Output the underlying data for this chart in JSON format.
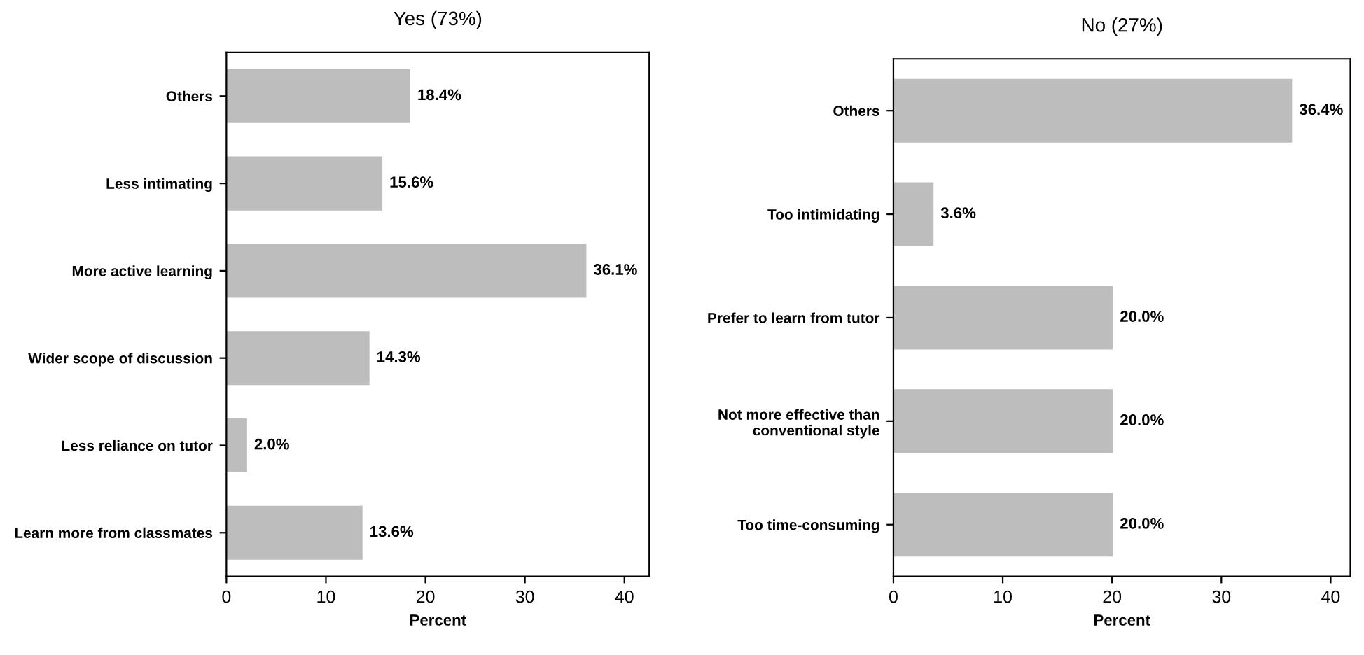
{
  "chart_data": [
    {
      "type": "bar",
      "orientation": "horizontal",
      "title": "Yes (73%)",
      "xlabel": "Percent",
      "categories": [
        "Others",
        "Less intimating",
        "More active learning",
        "Wider scope of discussion",
        "Less reliance on tutor",
        "Learn more from classmates"
      ],
      "values": [
        18.4,
        15.6,
        36.1,
        14.3,
        2.0,
        13.6
      ],
      "value_labels": [
        "18.4%",
        "15.6%",
        "36.1%",
        "14.3%",
        "2.0%",
        "13.6%"
      ],
      "color": "#bdbdbd",
      "xlim": [
        0,
        42.5
      ],
      "xticks": [
        0,
        10,
        20,
        30,
        40
      ],
      "grid": false,
      "legend": false
    },
    {
      "type": "bar",
      "orientation": "horizontal",
      "title": "No (27%)",
      "xlabel": "Percent",
      "categories": [
        "Others",
        "Too intimidating",
        "Prefer to learn from tutor",
        "Not more effective than\nconventional style",
        "Too time-consuming"
      ],
      "values": [
        36.4,
        3.6,
        20.0,
        20.0,
        20.0
      ],
      "value_labels": [
        "36.4%",
        "3.6%",
        "20.0%",
        "20.0%",
        "20.0%"
      ],
      "color": "#bdbdbd",
      "xlim": [
        0,
        41.8
      ],
      "xticks": [
        0,
        10,
        20,
        30,
        40
      ],
      "grid": false,
      "legend": false
    }
  ]
}
